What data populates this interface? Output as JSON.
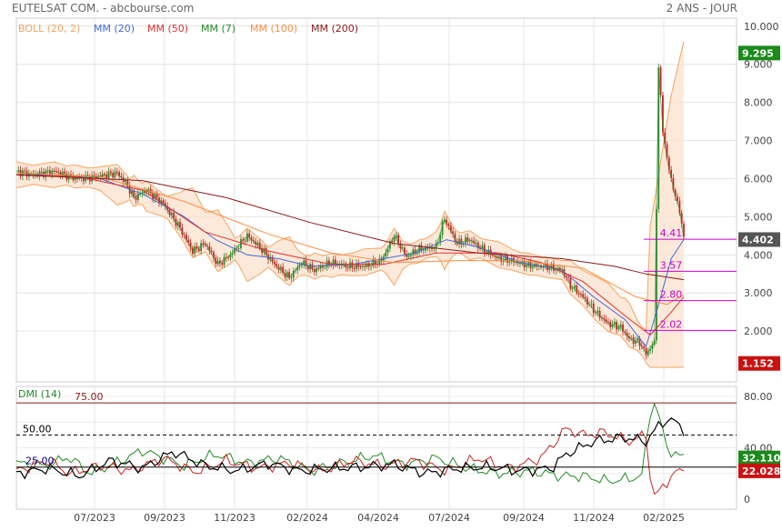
{
  "header": {
    "title": "EUTELSAT COM. - abcbourse.com",
    "period": "2 ANS - JOUR"
  },
  "colors": {
    "boll": "#f4a460",
    "mm20": "#4169e1",
    "mm50": "#e03030",
    "mm7": "#228b22",
    "mm100": "#ff8c42",
    "mm200": "#8b1a1a",
    "up": "#2e8b2e",
    "down": "#cc2222",
    "level": "#cc00cc",
    "dmi_plus": "#228b22",
    "dmi_minus": "#cc2222",
    "adx": "#000000"
  },
  "chart_data": [
    {
      "type": "candlestick",
      "legend": [
        "BOLL (20, 2)",
        "MM (20)",
        "MM (50)",
        "MM (7)",
        "MM (100)",
        "MM (200)"
      ],
      "x_ticks": [
        "07/2023",
        "09/2023",
        "11/2023",
        "02/2024",
        "04/2024",
        "07/2024",
        "09/2024",
        "11/2024",
        "02/2025"
      ],
      "y_ticks": [
        "10.000",
        "9.000",
        "8.000",
        "7.000",
        "6.000",
        "5.000",
        "4.000",
        "3.000",
        "2.000"
      ],
      "ylim": [
        1.0,
        10.0
      ],
      "last_price": "4.402",
      "high_tag": "9.295",
      "low_tag": "1.152",
      "levels": [
        {
          "label": "4.41",
          "value": 4.41
        },
        {
          "label": "3.57",
          "value": 3.57
        },
        {
          "label": "2.80",
          "value": 2.8
        },
        {
          "label": "2.02",
          "value": 2.02
        }
      ],
      "close_path": [
        [
          0,
          6.2
        ],
        [
          8,
          6.1
        ],
        [
          18,
          6.2
        ],
        [
          28,
          6.0
        ],
        [
          38,
          6.05
        ],
        [
          48,
          6.15
        ],
        [
          52,
          5.9
        ],
        [
          56,
          5.5
        ],
        [
          62,
          5.7
        ],
        [
          70,
          5.35
        ],
        [
          78,
          4.7
        ],
        [
          84,
          4.1
        ],
        [
          90,
          4.3
        ],
        [
          96,
          3.75
        ],
        [
          102,
          4.0
        ],
        [
          110,
          4.5
        ],
        [
          116,
          4.2
        ],
        [
          124,
          3.7
        ],
        [
          130,
          3.4
        ],
        [
          136,
          3.8
        ],
        [
          142,
          3.6
        ],
        [
          150,
          3.8
        ],
        [
          158,
          3.7
        ],
        [
          166,
          3.7
        ],
        [
          174,
          3.85
        ],
        [
          180,
          4.5
        ],
        [
          186,
          3.95
        ],
        [
          192,
          4.15
        ],
        [
          200,
          4.2
        ],
        [
          204,
          4.95
        ],
        [
          210,
          4.3
        ],
        [
          216,
          4.4
        ],
        [
          222,
          4.15
        ],
        [
          230,
          3.9
        ],
        [
          236,
          3.85
        ],
        [
          244,
          3.72
        ],
        [
          252,
          3.7
        ],
        [
          260,
          3.6
        ],
        [
          264,
          3.2
        ],
        [
          270,
          2.9
        ],
        [
          276,
          2.5
        ],
        [
          282,
          2.2
        ],
        [
          288,
          2.1
        ],
        [
          292,
          1.8
        ],
        [
          297,
          1.7
        ],
        [
          300,
          1.4
        ],
        [
          304,
          1.7
        ],
        [
          306,
          8.9
        ],
        [
          308,
          7.3
        ],
        [
          310,
          6.5
        ],
        [
          312,
          6.0
        ],
        [
          314,
          5.5
        ],
        [
          316,
          5.2
        ],
        [
          318,
          4.4
        ]
      ],
      "series": [
        {
          "name": "MM (20)",
          "color": "#4169e1",
          "values": [
            [
              0,
              6.1
            ],
            [
              20,
              6.1
            ],
            [
              40,
              6.0
            ],
            [
              60,
              5.6
            ],
            [
              80,
              5.0
            ],
            [
              95,
              4.4
            ],
            [
              110,
              4.0
            ],
            [
              125,
              3.9
            ],
            [
              140,
              3.7
            ],
            [
              160,
              3.75
            ],
            [
              175,
              3.9
            ],
            [
              190,
              4.05
            ],
            [
              205,
              4.4
            ],
            [
              220,
              4.2
            ],
            [
              240,
              3.8
            ],
            [
              260,
              3.6
            ],
            [
              275,
              2.9
            ],
            [
              290,
              2.3
            ],
            [
              300,
              1.6
            ],
            [
              305,
              2.5
            ],
            [
              312,
              3.9
            ],
            [
              318,
              4.4
            ]
          ]
        },
        {
          "name": "MM (50)",
          "color": "#e03030",
          "values": [
            [
              0,
              6.1
            ],
            [
              30,
              6.05
            ],
            [
              60,
              5.7
            ],
            [
              90,
              4.6
            ],
            [
              120,
              4.1
            ],
            [
              150,
              3.75
            ],
            [
              175,
              3.75
            ],
            [
              200,
              4.05
            ],
            [
              230,
              4.05
            ],
            [
              250,
              3.8
            ],
            [
              270,
              3.3
            ],
            [
              290,
              2.4
            ],
            [
              302,
              1.9
            ],
            [
              312,
              2.5
            ],
            [
              318,
              2.9
            ]
          ]
        },
        {
          "name": "MM (100)",
          "color": "#ff8c42",
          "values": [
            [
              0,
              6.15
            ],
            [
              40,
              6.05
            ],
            [
              80,
              5.4
            ],
            [
              120,
              4.55
            ],
            [
              150,
              4.05
            ],
            [
              180,
              3.8
            ],
            [
              210,
              3.85
            ],
            [
              240,
              3.85
            ],
            [
              270,
              3.65
            ],
            [
              295,
              2.9
            ],
            [
              310,
              2.7
            ],
            [
              318,
              2.95
            ]
          ]
        },
        {
          "name": "MM (200)",
          "color": "#8b1a1a",
          "values": [
            [
              0,
              6.1
            ],
            [
              60,
              5.95
            ],
            [
              100,
              5.5
            ],
            [
              140,
              4.85
            ],
            [
              180,
              4.3
            ],
            [
              220,
              4.05
            ],
            [
              260,
              3.9
            ],
            [
              285,
              3.7
            ],
            [
              300,
              3.5
            ],
            [
              318,
              3.35
            ]
          ]
        }
      ]
    },
    {
      "type": "line",
      "legend": [
        "DMI (14)"
      ],
      "y_ticks": [
        "80.00",
        "40.00",
        "0"
      ],
      "ylim": [
        0,
        90
      ],
      "levels": [
        {
          "label": "75.00",
          "value": 75
        },
        {
          "label": "50.00",
          "value": 50
        },
        {
          "label": "25.00",
          "value": 25
        }
      ],
      "tags": {
        "plus": "32.110",
        "minus": "22.028"
      },
      "series": [
        {
          "name": "DMI+",
          "color": "#228b22",
          "values": [
            [
              0,
              28
            ],
            [
              15,
              26
            ],
            [
              25,
              33
            ],
            [
              35,
              20
            ],
            [
              50,
              30
            ],
            [
              60,
              38
            ],
            [
              80,
              26
            ],
            [
              95,
              35
            ],
            [
              110,
              28
            ],
            [
              125,
              32
            ],
            [
              140,
              22
            ],
            [
              155,
              28
            ],
            [
              170,
              34
            ],
            [
              185,
              27
            ],
            [
              200,
              32
            ],
            [
              215,
              24
            ],
            [
              230,
              20
            ],
            [
              245,
              22
            ],
            [
              260,
              18
            ],
            [
              270,
              18
            ],
            [
              282,
              14
            ],
            [
              292,
              16
            ],
            [
              298,
              18
            ],
            [
              303,
              80
            ],
            [
              306,
              65
            ],
            [
              310,
              40
            ],
            [
              316,
              33
            ]
          ]
        },
        {
          "name": "DMI-",
          "color": "#cc2222",
          "values": [
            [
              0,
              22
            ],
            [
              15,
              30
            ],
            [
              25,
              20
            ],
            [
              40,
              26
            ],
            [
              55,
              22
            ],
            [
              70,
              32
            ],
            [
              85,
              21
            ],
            [
              100,
              30
            ],
            [
              115,
              24
            ],
            [
              130,
              28
            ],
            [
              145,
              22
            ],
            [
              160,
              30
            ],
            [
              175,
              26
            ],
            [
              190,
              30
            ],
            [
              205,
              22
            ],
            [
              220,
              32
            ],
            [
              235,
              24
            ],
            [
              250,
              32
            ],
            [
              262,
              55
            ],
            [
              270,
              50
            ],
            [
              280,
              52
            ],
            [
              292,
              45
            ],
            [
              300,
              50
            ],
            [
              303,
              2
            ],
            [
              306,
              5
            ],
            [
              312,
              18
            ],
            [
              316,
              22
            ]
          ]
        },
        {
          "name": "ADX",
          "color": "#000000",
          "values": [
            [
              0,
              20
            ],
            [
              15,
              24
            ],
            [
              30,
              18
            ],
            [
              45,
              30
            ],
            [
              60,
              24
            ],
            [
              75,
              37
            ],
            [
              90,
              26
            ],
            [
              105,
              22
            ],
            [
              120,
              28
            ],
            [
              135,
              22
            ],
            [
              150,
              24
            ],
            [
              165,
              25
            ],
            [
              180,
              27
            ],
            [
              195,
              20
            ],
            [
              210,
              24
            ],
            [
              225,
              25
            ],
            [
              240,
              22
            ],
            [
              255,
              24
            ],
            [
              262,
              35
            ],
            [
              275,
              45
            ],
            [
              290,
              48
            ],
            [
              300,
              45
            ],
            [
              306,
              57
            ],
            [
              310,
              62
            ],
            [
              314,
              60
            ],
            [
              318,
              54
            ]
          ]
        }
      ]
    }
  ]
}
